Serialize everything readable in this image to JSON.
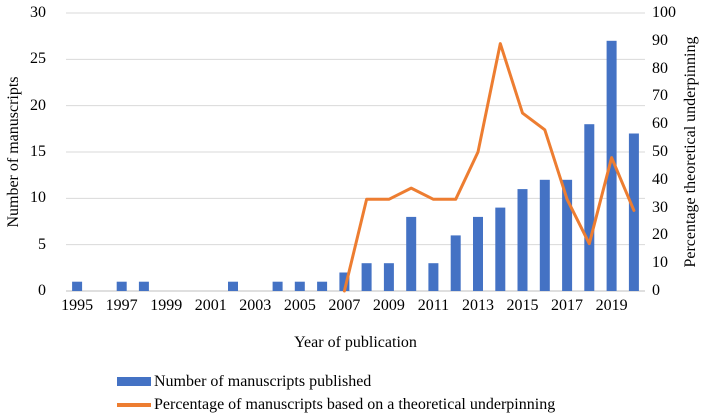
{
  "figure": {
    "background": "#ffffff",
    "text_color": "#000000"
  },
  "chart_data": {
    "type": "bar",
    "subtype": "combo-bar-line-dual-axis",
    "title": "",
    "xlabel": "Year of publication",
    "ylabel_left": "Number of manuscripts",
    "ylabel_right": "Percentage theoretical underpinning",
    "categories": [
      1995,
      1996,
      1997,
      1998,
      1999,
      2000,
      2001,
      2002,
      2003,
      2004,
      2005,
      2006,
      2007,
      2008,
      2009,
      2010,
      2011,
      2012,
      2013,
      2014,
      2015,
      2016,
      2017,
      2018,
      2019,
      2020
    ],
    "x_tick_labels": [
      "1995",
      "1997",
      "1999",
      "2001",
      "2003",
      "2005",
      "2007",
      "2009",
      "2011",
      "2013",
      "2015",
      "2017",
      "2019"
    ],
    "series": [
      {
        "name": "Number of manuscripts published",
        "type": "bar",
        "axis": "left",
        "color": "#4472C4",
        "values": [
          1,
          0,
          1,
          1,
          0,
          0,
          0,
          1,
          0,
          1,
          1,
          1,
          2,
          3,
          3,
          8,
          3,
          6,
          8,
          9,
          11,
          12,
          12,
          18,
          27,
          17
        ]
      },
      {
        "name": "Percentage of manuscripts based on a theoretical underpinning",
        "type": "line",
        "axis": "right",
        "color": "#ED7D31",
        "values": [
          null,
          null,
          null,
          null,
          null,
          null,
          null,
          null,
          null,
          null,
          null,
          null,
          0,
          33,
          33,
          37,
          33,
          33,
          50,
          89,
          64,
          58,
          33,
          17,
          48,
          29
        ]
      }
    ],
    "left_axis": {
      "min": 0,
      "max": 30,
      "ticks": [
        0,
        5,
        10,
        15,
        20,
        25,
        30
      ]
    },
    "right_axis": {
      "min": 0,
      "max": 100,
      "ticks": [
        0,
        10,
        20,
        30,
        40,
        50,
        60,
        70,
        80,
        90,
        100
      ]
    },
    "grid": true,
    "gridline_color": "#D9D9D9",
    "axis_line_color": "#BFBFBF",
    "legend_position": "bottom-left"
  }
}
